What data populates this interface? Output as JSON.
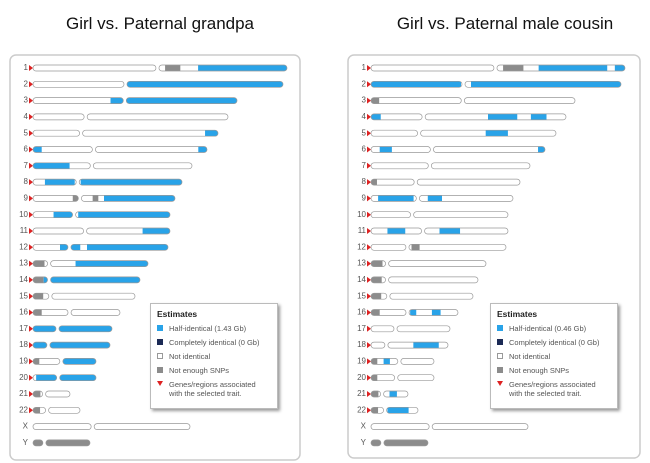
{
  "panels": [
    {
      "title": "Girl vs. Paternal grandpa",
      "chromosomes": [
        "1",
        "2",
        "3",
        "4",
        "5",
        "6",
        "7",
        "8",
        "9",
        "10",
        "11",
        "12",
        "13",
        "14",
        "15",
        "16",
        "17",
        "18",
        "19",
        "20",
        "21",
        "22",
        "X",
        "Y"
      ],
      "legend": {
        "title": "Estimates",
        "items": [
          "Half-identical (1.43 Gb)",
          "Completely identical (0 Gb)",
          "Not identical",
          "Not enough SNPs",
          "Genes/regions associated with the selected trait."
        ]
      }
    },
    {
      "title": "Girl vs. Paternal male cousin",
      "chromosomes": [
        "1",
        "2",
        "3",
        "4",
        "5",
        "6",
        "7",
        "8",
        "9",
        "10",
        "11",
        "12",
        "13",
        "14",
        "15",
        "16",
        "17",
        "18",
        "19",
        "20",
        "21",
        "22",
        "X",
        "Y"
      ],
      "legend": {
        "title": "Estimates",
        "items": [
          "Half-identical (0.46 Gb)",
          "Completely identical (0 Gb)",
          "Not identical",
          "Not enough SNPs",
          "Genes/regions associated with the selected trait."
        ]
      }
    }
  ]
}
